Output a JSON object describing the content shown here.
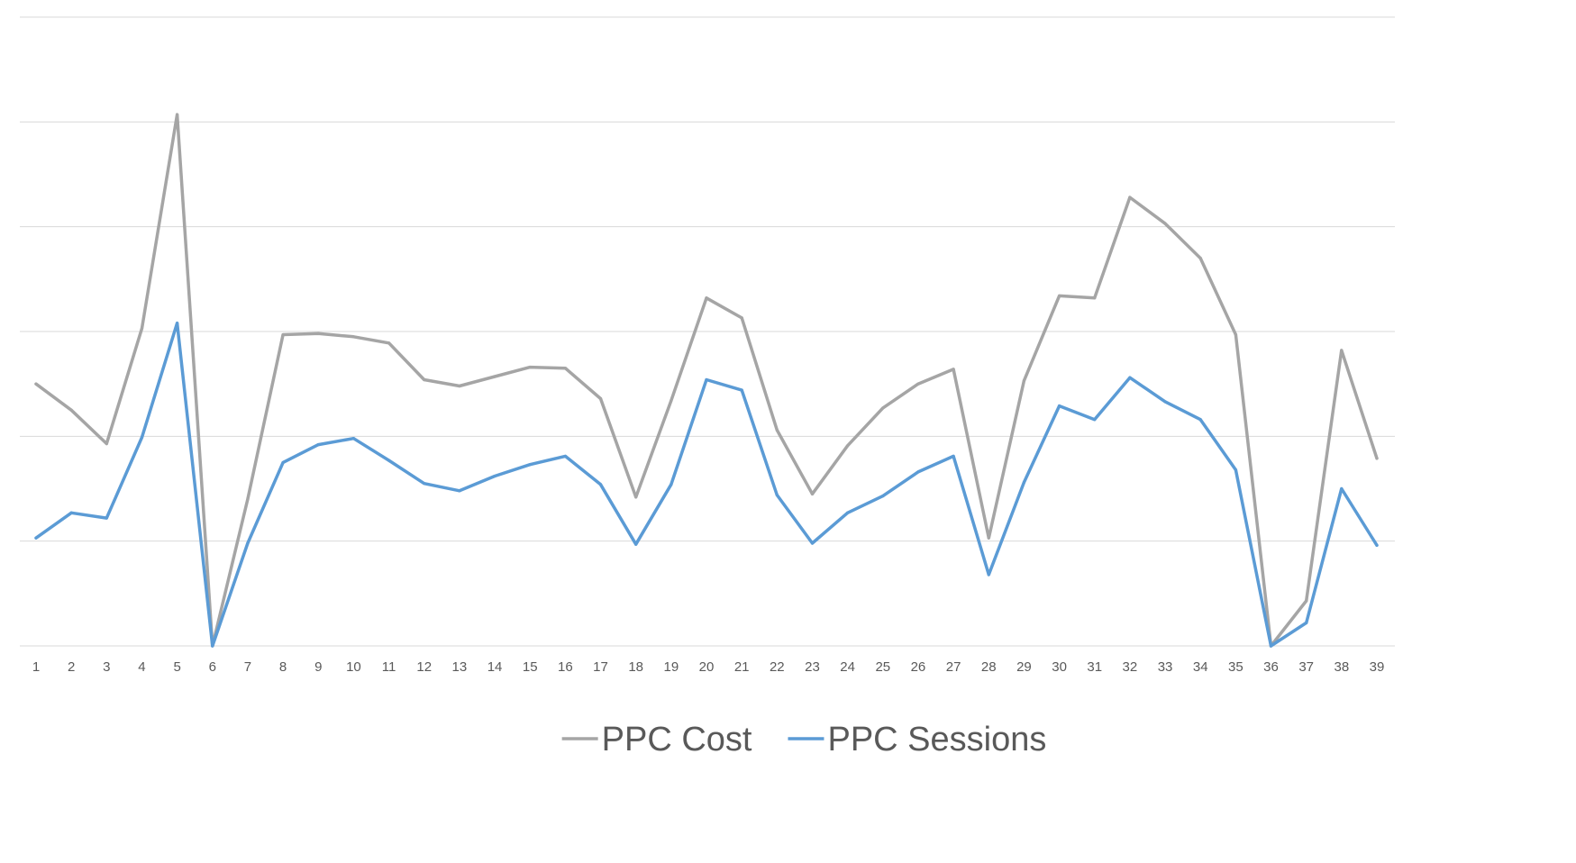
{
  "chart_data": {
    "type": "line",
    "title": "",
    "xlabel": "",
    "ylabel": "",
    "x": [
      1,
      2,
      3,
      4,
      5,
      6,
      7,
      8,
      9,
      10,
      11,
      12,
      13,
      14,
      15,
      16,
      17,
      18,
      19,
      20,
      21,
      22,
      23,
      24,
      25,
      26,
      27,
      28,
      29,
      30,
      31,
      32,
      33,
      34,
      35,
      36,
      37,
      38,
      39
    ],
    "ylim": [
      0,
      6
    ],
    "gridlines": [
      0,
      1,
      2,
      3,
      4,
      5,
      6
    ],
    "y_tick_labels_visible": false,
    "legend_position": "bottom",
    "series": [
      {
        "name": "PPC Cost",
        "color": "#a5a5a5",
        "values": [
          2.5,
          2.25,
          1.93,
          3.03,
          5.07,
          0.0,
          1.4,
          2.97,
          2.98,
          2.95,
          2.89,
          2.54,
          2.48,
          2.57,
          2.66,
          2.65,
          2.36,
          1.42,
          2.34,
          3.32,
          3.13,
          2.06,
          1.45,
          1.91,
          2.27,
          2.5,
          2.64,
          1.03,
          2.53,
          3.34,
          3.32,
          4.28,
          4.03,
          3.7,
          2.97,
          0.0,
          0.43,
          2.82,
          1.79
        ]
      },
      {
        "name": "PPC Sessions",
        "color": "#5b9bd5",
        "values": [
          1.03,
          1.27,
          1.22,
          1.99,
          3.08,
          0.0,
          0.98,
          1.75,
          1.92,
          1.98,
          1.77,
          1.55,
          1.48,
          1.62,
          1.73,
          1.81,
          1.54,
          0.97,
          1.54,
          2.54,
          2.44,
          1.44,
          0.98,
          1.27,
          1.43,
          1.66,
          1.81,
          0.68,
          1.56,
          2.29,
          2.16,
          2.56,
          2.33,
          2.16,
          1.68,
          0.0,
          0.22,
          1.5,
          0.96
        ]
      }
    ]
  }
}
